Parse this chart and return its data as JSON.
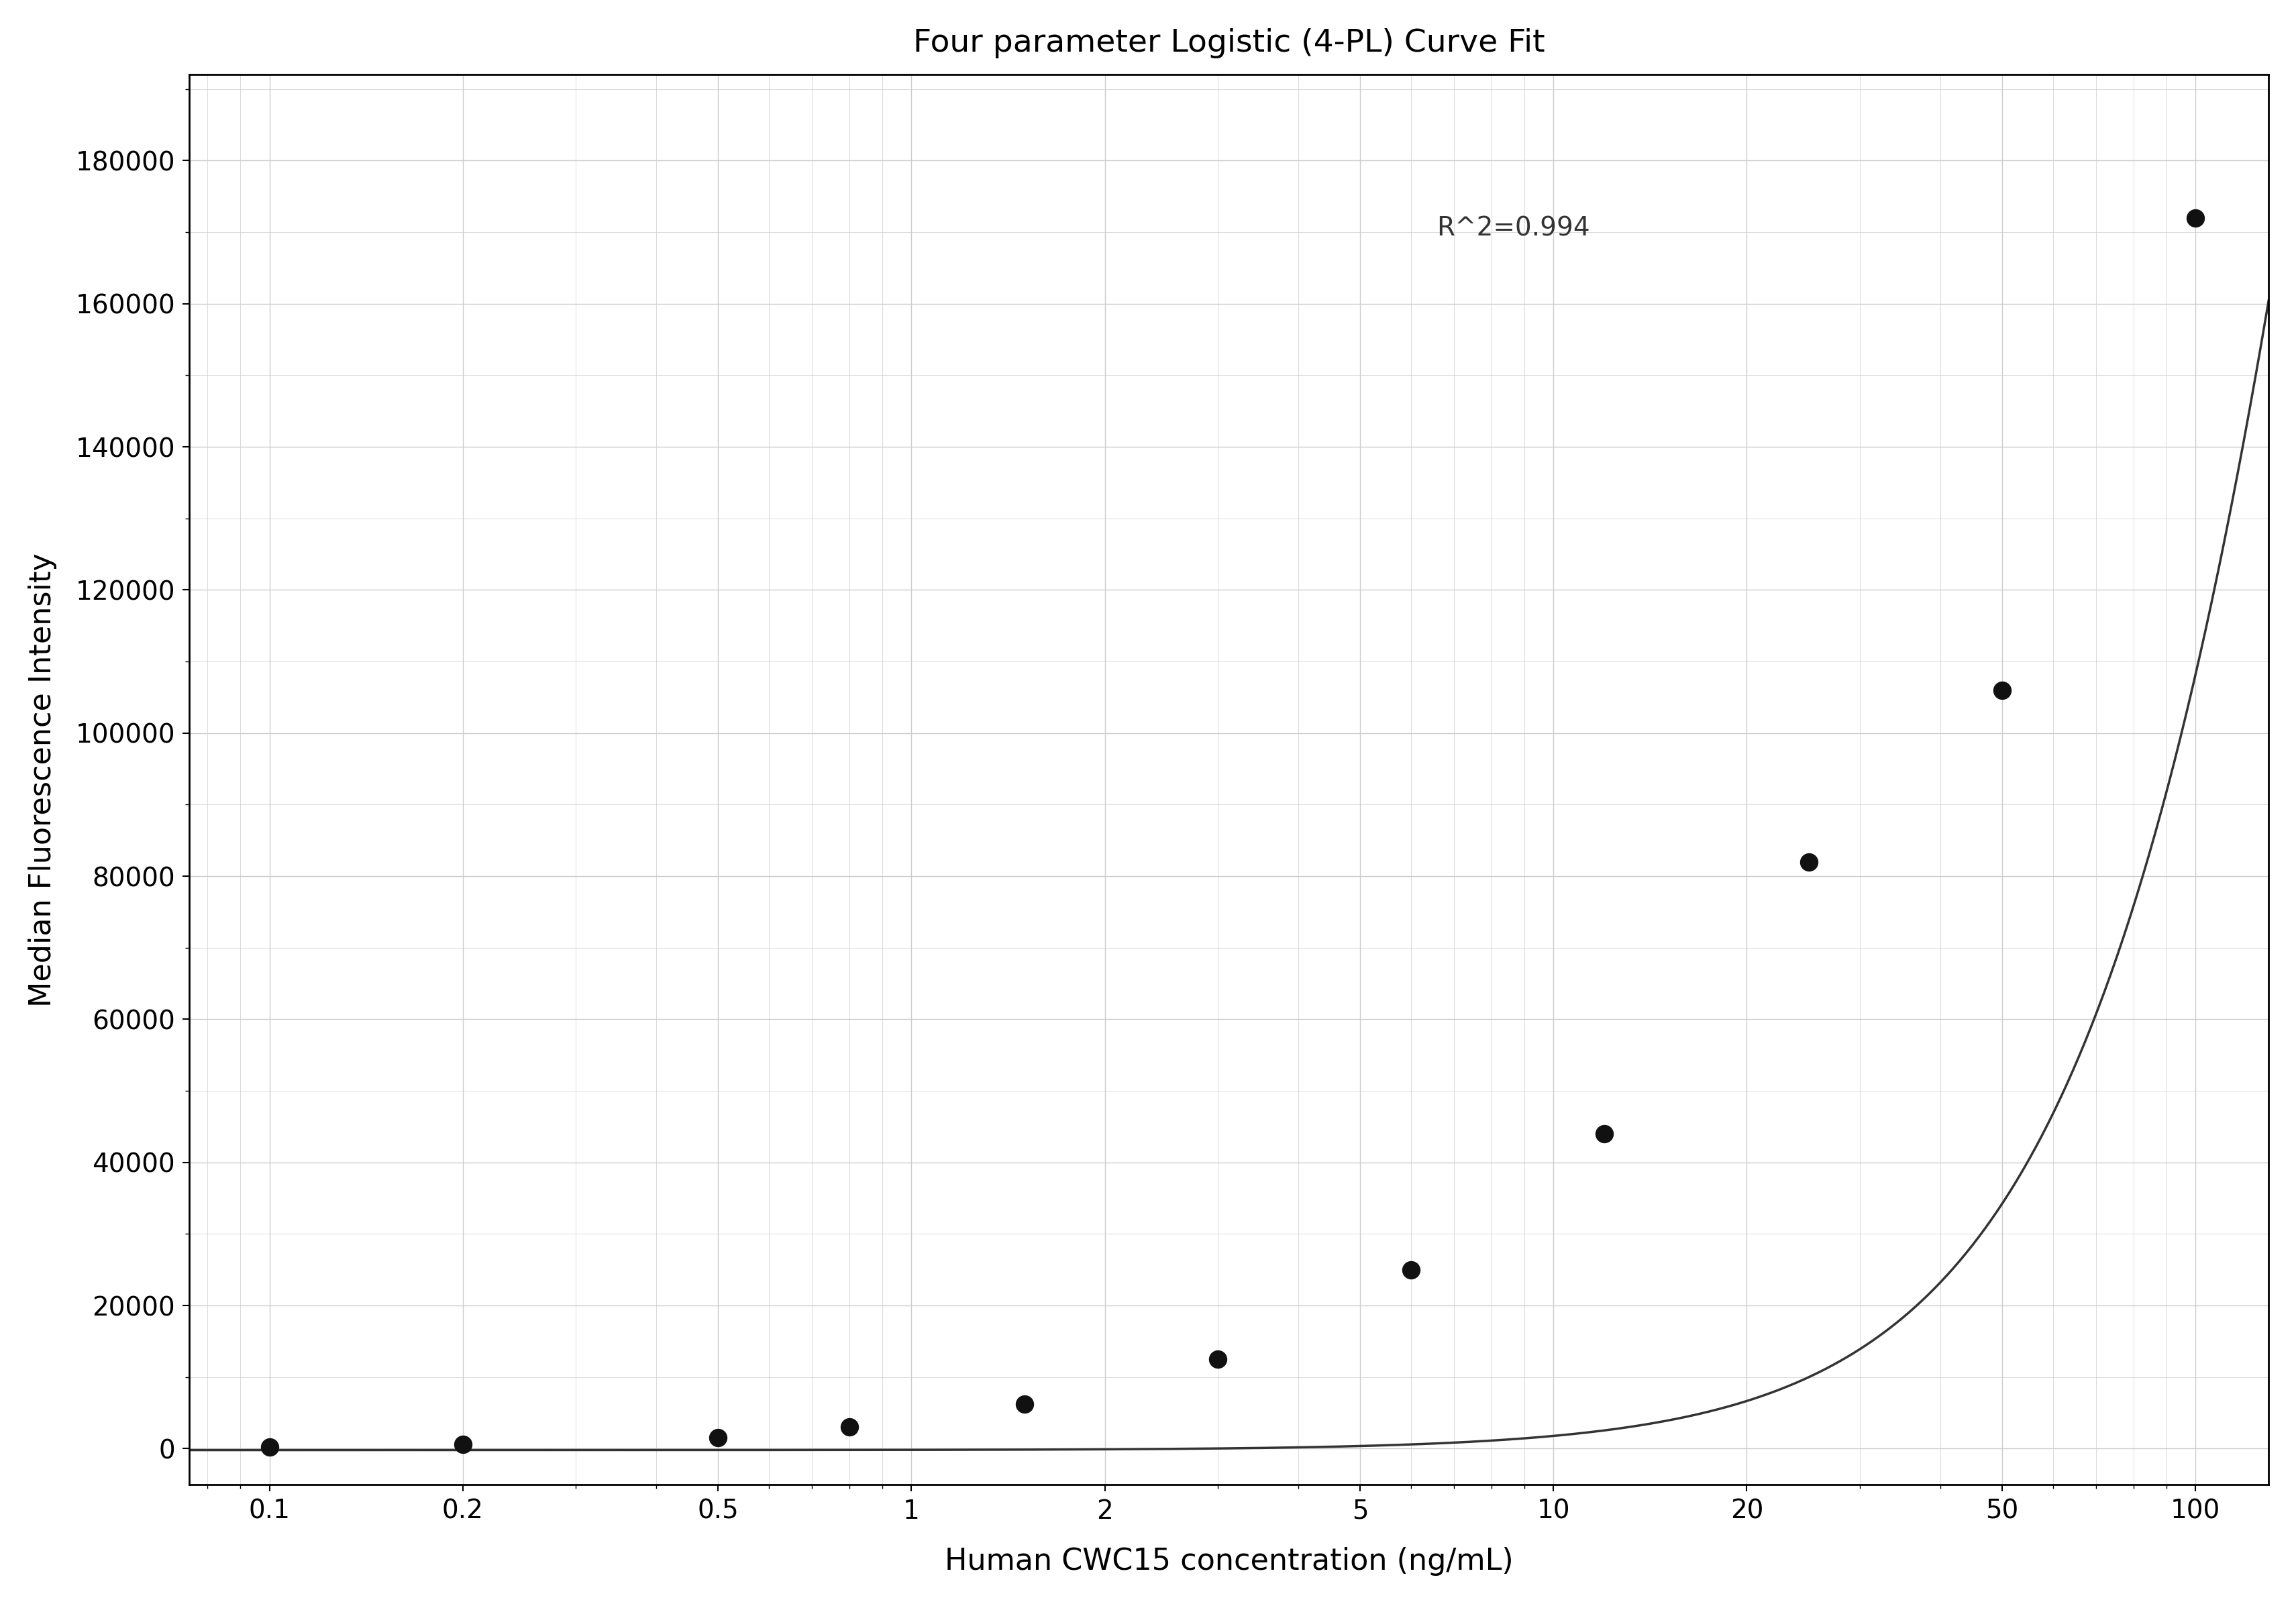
{
  "title": "Four parameter Logistic (4-PL) Curve Fit",
  "xlabel": "Human CWC15 concentration (ng/mL)",
  "ylabel": "Median Fluorescence Intensity",
  "r_squared_text": "R^2=0.994",
  "data_x": [
    0.1,
    0.2,
    0.5,
    0.8,
    1.5,
    3.0,
    6.0,
    12.0,
    25.0,
    50.0,
    100.0
  ],
  "data_y": [
    200,
    600,
    1500,
    3000,
    6200,
    12500,
    25000,
    44000,
    82000,
    106000,
    172000
  ],
  "xmin": 0.075,
  "xmax": 130,
  "ymin": -5000,
  "ymax": 192000,
  "yticks": [
    0,
    20000,
    40000,
    60000,
    80000,
    100000,
    120000,
    140000,
    160000,
    180000
  ],
  "xticks": [
    0.1,
    0.2,
    0.5,
    1,
    2,
    5,
    10,
    20,
    50,
    100
  ],
  "xtick_labels": [
    "0.1",
    "0.2",
    "0.5",
    "1",
    "2",
    "5",
    "10",
    "20",
    "50",
    "100"
  ],
  "curve_color": "#333333",
  "dot_color": "#111111",
  "grid_color": "#cccccc",
  "annotation_color": "#333333",
  "bg_color": "#ffffff",
  "title_fontsize": 34,
  "label_fontsize": 32,
  "tick_fontsize": 28,
  "annotation_fontsize": 28,
  "4pl_A": -200,
  "4pl_D": 800000,
  "4pl_C": 280.0,
  "4pl_B": 1.8
}
